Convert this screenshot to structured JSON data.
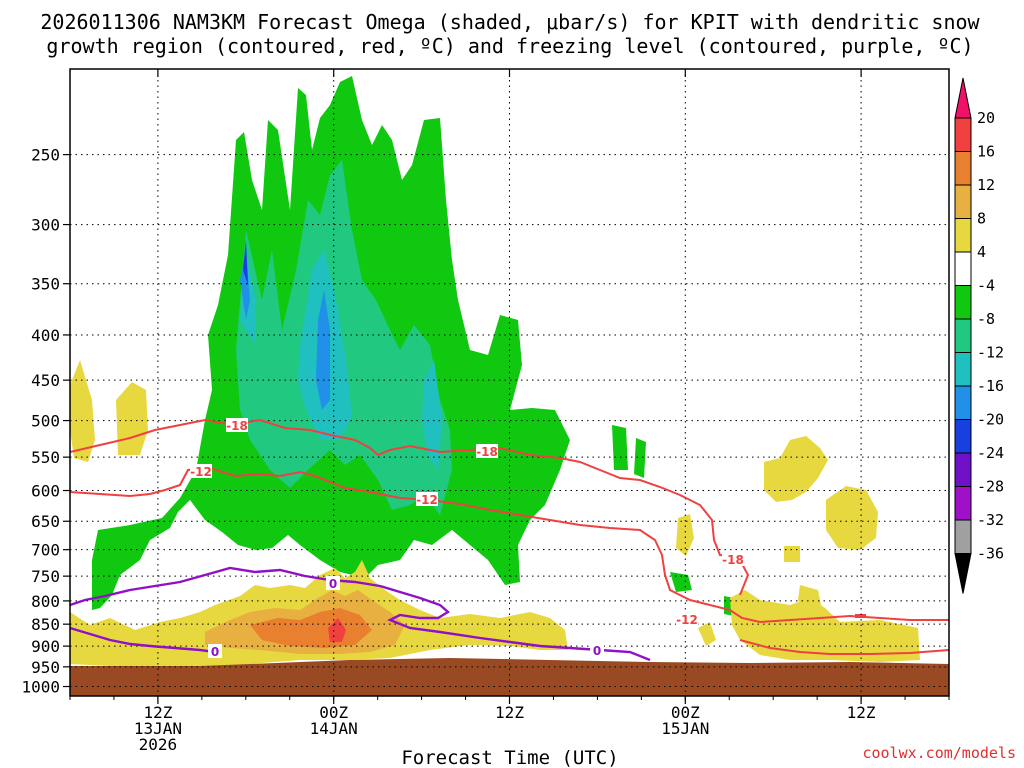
{
  "title_line1": "2026011306 NAM3KM Forecast Omega (shaded, μbar/s) for KPIT with dendritic snow",
  "title_line2": "growth region (contoured, red, ºC) and freezing level (contoured, purple, ºC)",
  "credit": "coolwx.com/models",
  "chart_data": {
    "type": "time-height cross-section",
    "title": "2026011306 NAM3KM Forecast Omega (shaded, μbar/s) for KPIT with dendritic snow growth region (contoured, red, ºC) and freezing level (contoured, purple, ºC)",
    "xlabel": "Forecast Time (UTC)",
    "ylabel": "",
    "x_ticks": [
      {
        "hour": 6,
        "label": [
          "12Z",
          "13JAN",
          "2026"
        ]
      },
      {
        "hour": 18,
        "label": [
          "00Z",
          "14JAN"
        ]
      },
      {
        "hour": 30,
        "label": [
          "12Z"
        ]
      },
      {
        "hour": 42,
        "label": [
          "00Z",
          "15JAN"
        ]
      },
      {
        "hour": 54,
        "label": [
          "12Z"
        ]
      }
    ],
    "xlim_hours": [
      0,
      60
    ],
    "y_ticks": [
      "250",
      "300",
      "350",
      "400",
      "450",
      "500",
      "550",
      "600",
      "650",
      "700",
      "750",
      "800",
      "850",
      "900",
      "950",
      "1000"
    ],
    "y_tick_values": [
      250,
      300,
      350,
      400,
      450,
      500,
      550,
      600,
      650,
      700,
      750,
      800,
      850,
      900,
      950,
      1000
    ],
    "ylim_hpa": [
      200,
      1025
    ],
    "grid": true,
    "colorbar": {
      "labels": [
        "20",
        "16",
        "12",
        "8",
        "4",
        "-4",
        "-8",
        "-12",
        "-16",
        "-20",
        "-24",
        "-28",
        "-32",
        "-36"
      ],
      "bins": [
        {
          "from": 20,
          "to": 24,
          "color": "#f0106a"
        },
        {
          "from": 16,
          "to": 20,
          "color": "#f04040"
        },
        {
          "from": 12,
          "to": 16,
          "color": "#e88030"
        },
        {
          "from": 8,
          "to": 12,
          "color": "#e8b040"
        },
        {
          "from": 4,
          "to": 8,
          "color": "#e8d840"
        },
        {
          "from": -4,
          "to": 4,
          "color": "#ffffff"
        },
        {
          "from": -8,
          "to": -4,
          "color": "#10c810"
        },
        {
          "from": -12,
          "to": -8,
          "color": "#20c880"
        },
        {
          "from": -16,
          "to": -12,
          "color": "#20c0c0"
        },
        {
          "from": -20,
          "to": -16,
          "color": "#2090e8"
        },
        {
          "from": -24,
          "to": -20,
          "color": "#1840e0"
        },
        {
          "from": -28,
          "to": -24,
          "color": "#7010c8"
        },
        {
          "from": -32,
          "to": -28,
          "color": "#a010c8"
        },
        {
          "from": -36,
          "to": -32,
          "color": "#a0a0a0"
        },
        {
          "from": -40,
          "to": -36,
          "color": "#000000"
        }
      ]
    },
    "contours": {
      "dendritic_red": {
        "color": "#f04040",
        "levels": [
          "-18",
          "-12"
        ]
      },
      "freezing_purple": {
        "color": "#9010c8",
        "levels": [
          "0"
        ]
      }
    },
    "ground_color": "#9a4a22"
  }
}
